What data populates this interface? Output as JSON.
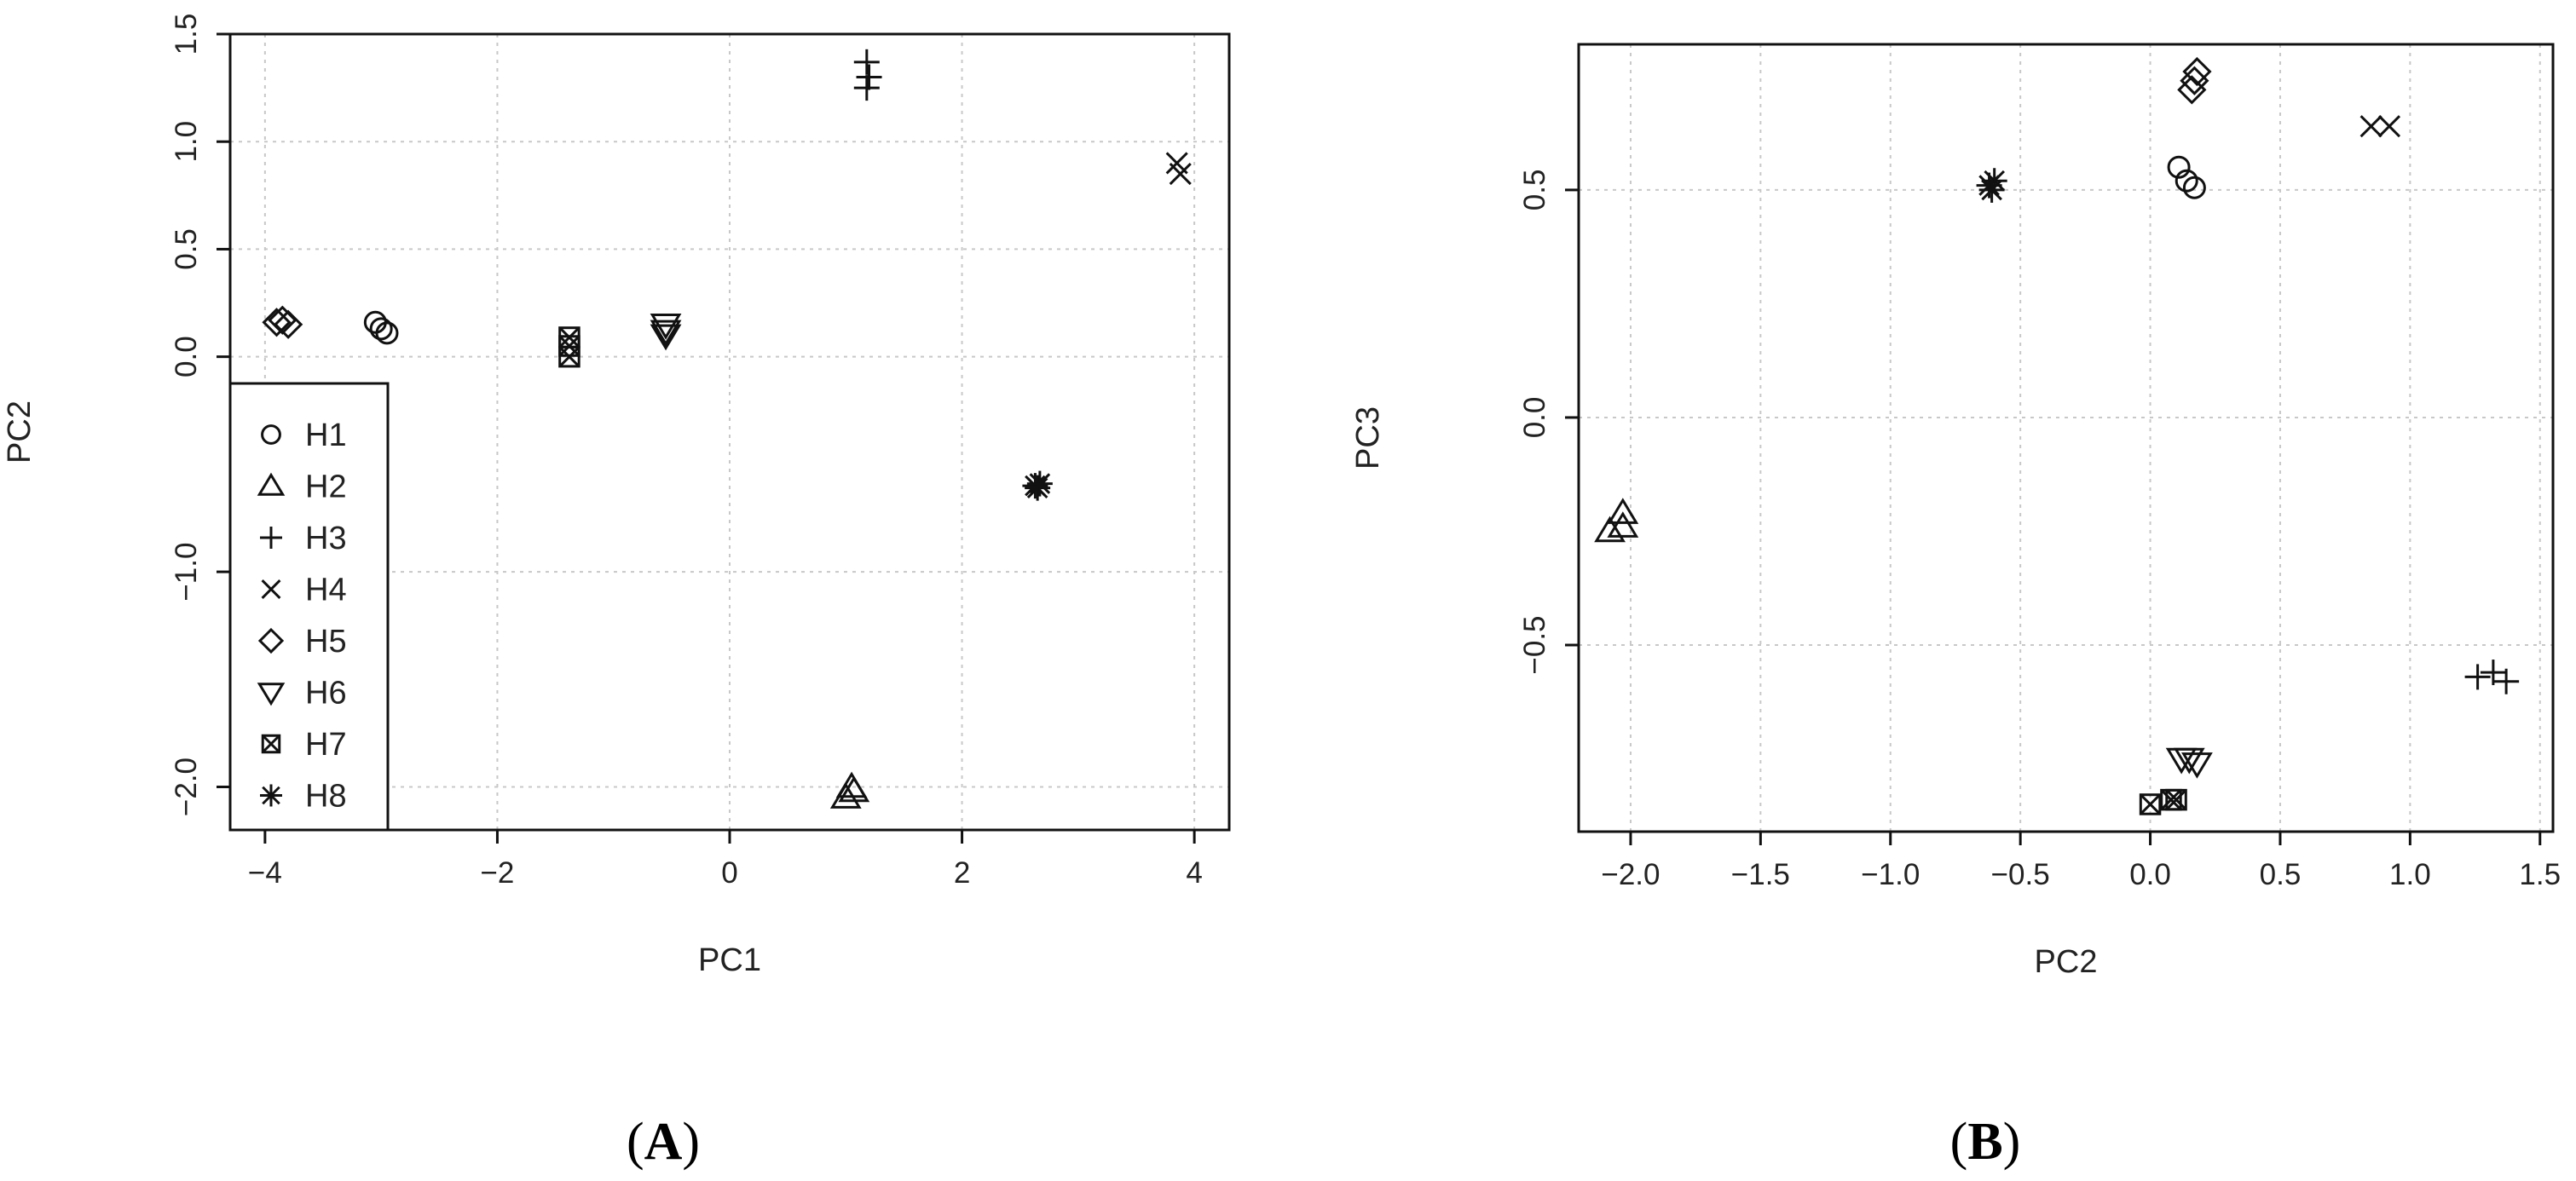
{
  "markers": {
    "H1": "circle",
    "H2": "triangle-up",
    "H3": "plus",
    "H4": "cross",
    "H5": "diamond",
    "H6": "triangle-down",
    "H7": "square-crossed",
    "H8": "asterisk"
  },
  "chart_data": [
    {
      "type": "scatter",
      "panel_label": "A",
      "xlabel": "PC1",
      "ylabel": "PC2",
      "xlim": [
        -4.3,
        4.3
      ],
      "ylim": [
        -2.2,
        1.5
      ],
      "xticks": [
        -4,
        -2,
        0,
        2,
        4
      ],
      "yticks": [
        -2.0,
        -1.0,
        0.0,
        0.5,
        1.0,
        1.5
      ],
      "xtick_labels": [
        "−4",
        "−2",
        "0",
        "2",
        "4"
      ],
      "ytick_labels": [
        "−2.0",
        "−1.0",
        "0.0",
        "0.5",
        "1.0",
        "1.5"
      ],
      "grid": true,
      "legend_position": "bottom-left",
      "legend": [
        "H1",
        "H2",
        "H3",
        "H4",
        "H5",
        "H6",
        "H7",
        "H8"
      ],
      "series": [
        {
          "name": "H1",
          "points": [
            [
              -3.05,
              0.16
            ],
            [
              -3.0,
              0.13
            ],
            [
              -2.95,
              0.11
            ]
          ]
        },
        {
          "name": "H2",
          "points": [
            [
              1.0,
              -2.05
            ],
            [
              1.07,
              -2.02
            ],
            [
              1.05,
              -2.0
            ]
          ]
        },
        {
          "name": "H3",
          "points": [
            [
              1.18,
              1.37
            ],
            [
              1.2,
              1.3
            ],
            [
              1.18,
              1.25
            ]
          ]
        },
        {
          "name": "H4",
          "points": [
            [
              3.85,
              0.9
            ],
            [
              3.88,
              0.85
            ]
          ]
        },
        {
          "name": "H5",
          "points": [
            [
              -3.9,
              0.16
            ],
            [
              -3.85,
              0.17
            ],
            [
              -3.8,
              0.15
            ]
          ]
        },
        {
          "name": "H6",
          "points": [
            [
              -0.55,
              0.15
            ],
            [
              -0.55,
              0.12
            ],
            [
              -0.55,
              0.1
            ]
          ]
        },
        {
          "name": "H7",
          "points": [
            [
              -1.38,
              0.09
            ],
            [
              -1.38,
              0.05
            ],
            [
              -1.38,
              0.0
            ]
          ]
        },
        {
          "name": "H8",
          "points": [
            [
              2.63,
              -0.6
            ],
            [
              2.65,
              -0.61
            ],
            [
              2.67,
              -0.59
            ]
          ]
        }
      ]
    },
    {
      "type": "scatter",
      "panel_label": "B",
      "xlabel": "PC2",
      "ylabel": "PC3",
      "xlim": [
        -2.2,
        1.55
      ],
      "ylim": [
        -0.91,
        0.82
      ],
      "xticks": [
        -2.0,
        -1.5,
        -1.0,
        -0.5,
        0.0,
        0.5,
        1.0,
        1.5
      ],
      "yticks": [
        -0.5,
        0.0,
        0.5
      ],
      "xtick_labels": [
        "−2.0",
        "−1.5",
        "−1.0",
        "−0.5",
        "0.0",
        "0.5",
        "1.0",
        "1.5"
      ],
      "ytick_labels": [
        "−0.5",
        "0.0",
        "0.5"
      ],
      "grid": true,
      "series": [
        {
          "name": "H1",
          "points": [
            [
              0.11,
              0.55
            ],
            [
              0.14,
              0.52
            ],
            [
              0.17,
              0.505
            ]
          ]
        },
        {
          "name": "H2",
          "points": [
            [
              -2.08,
              -0.25
            ],
            [
              -2.03,
              -0.24
            ],
            [
              -2.03,
              -0.21
            ]
          ]
        },
        {
          "name": "H3",
          "points": [
            [
              1.26,
              -0.57
            ],
            [
              1.32,
              -0.56
            ],
            [
              1.37,
              -0.58
            ]
          ]
        },
        {
          "name": "H4",
          "points": [
            [
              0.85,
              0.64
            ],
            [
              0.92,
              0.64
            ]
          ]
        },
        {
          "name": "H5",
          "points": [
            [
              0.16,
              0.72
            ],
            [
              0.17,
              0.74
            ],
            [
              0.18,
              0.76
            ]
          ]
        },
        {
          "name": "H6",
          "points": [
            [
              0.12,
              -0.75
            ],
            [
              0.15,
              -0.75
            ],
            [
              0.18,
              -0.76
            ]
          ]
        },
        {
          "name": "H7",
          "points": [
            [
              0.0,
              -0.85
            ],
            [
              0.08,
              -0.84
            ],
            [
              0.1,
              -0.84
            ]
          ]
        },
        {
          "name": "H8",
          "points": [
            [
              -0.62,
              0.51
            ],
            [
              -0.6,
              0.52
            ],
            [
              -0.61,
              0.5
            ]
          ]
        }
      ]
    }
  ]
}
